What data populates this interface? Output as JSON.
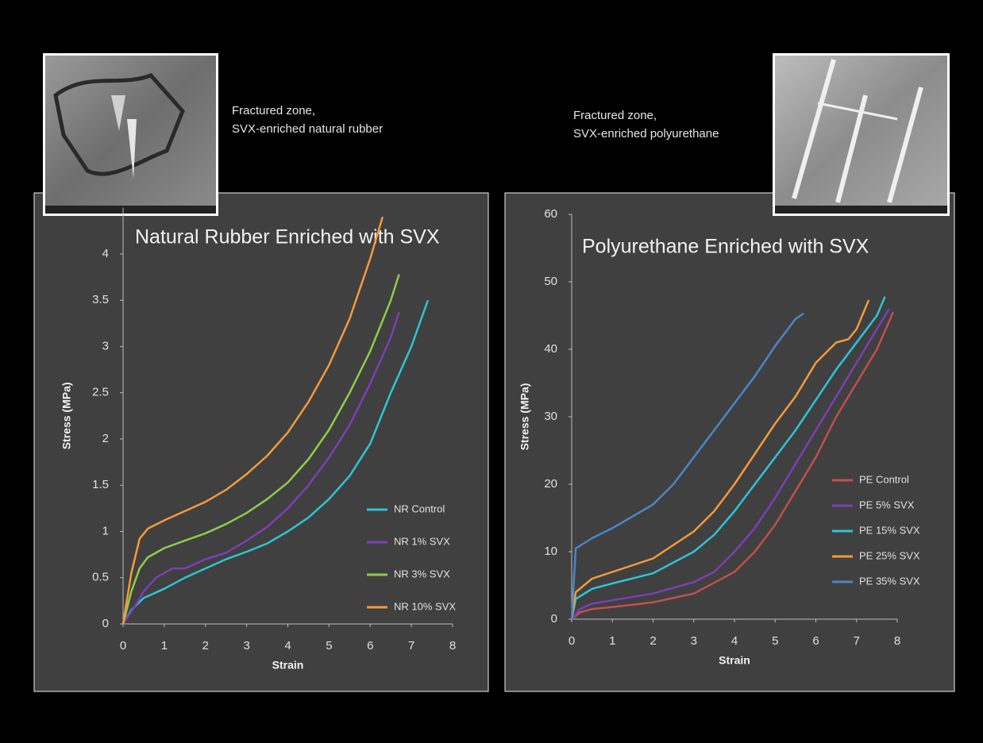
{
  "captions": [
    {
      "line1": "Fractured zone,",
      "line2": "SVX-enriched natural rubber"
    },
    {
      "line1": "Fractured zone,",
      "line2": "SVX-enriched polyurethane"
    }
  ],
  "chart_data": [
    {
      "type": "line",
      "title": "Natural Rubber Enriched with SVX",
      "x_label": "Strain",
      "y_label": "Stress (MPa)",
      "xlim": [
        0,
        8
      ],
      "xticks": [
        0,
        1,
        2,
        3,
        4,
        5,
        6,
        7,
        8
      ],
      "ylim": [
        0,
        4.5
      ],
      "yticks": [
        0,
        0.5,
        1,
        1.5,
        2,
        2.5,
        3,
        3.5,
        4
      ],
      "legend": "right",
      "series": [
        {
          "name": "NR Control",
          "color": "#2ec4d6",
          "x": [
            0,
            0.2,
            0.5,
            1,
            1.5,
            2,
            2.5,
            3,
            3.5,
            4,
            4.5,
            5,
            5.5,
            6,
            6.5,
            7,
            7.2,
            7.4
          ],
          "values": [
            0,
            0.15,
            0.28,
            0.38,
            0.5,
            0.6,
            0.7,
            0.78,
            0.87,
            1.0,
            1.15,
            1.35,
            1.6,
            1.95,
            2.5,
            3.0,
            3.25,
            3.5
          ]
        },
        {
          "name": "NR 1% SVX",
          "color": "#7b3fb5",
          "x": [
            0,
            0.3,
            0.5,
            0.8,
            1.2,
            1.5,
            2,
            2.5,
            3,
            3.5,
            4,
            4.5,
            5,
            5.5,
            6,
            6.5,
            6.7
          ],
          "values": [
            0,
            0.2,
            0.35,
            0.5,
            0.6,
            0.6,
            0.7,
            0.77,
            0.9,
            1.05,
            1.25,
            1.5,
            1.8,
            2.15,
            2.6,
            3.1,
            3.37
          ]
        },
        {
          "name": "NR 3% SVX",
          "color": "#8fcc4a",
          "x": [
            0,
            0.2,
            0.4,
            0.6,
            1,
            1.5,
            2,
            2.5,
            3,
            3.5,
            4,
            4.5,
            5,
            5.5,
            6,
            6.5,
            6.7
          ],
          "values": [
            0,
            0.35,
            0.6,
            0.72,
            0.82,
            0.9,
            0.98,
            1.08,
            1.2,
            1.35,
            1.53,
            1.78,
            2.1,
            2.5,
            2.95,
            3.5,
            3.78
          ]
        },
        {
          "name": "NR 10% SVX",
          "color": "#f39a3a",
          "x": [
            0,
            0.2,
            0.4,
            0.6,
            1,
            1.5,
            2,
            2.5,
            3,
            3.5,
            4,
            4.5,
            5,
            5.5,
            6,
            6.3
          ],
          "values": [
            0,
            0.55,
            0.92,
            1.03,
            1.12,
            1.22,
            1.32,
            1.45,
            1.62,
            1.82,
            2.07,
            2.4,
            2.8,
            3.3,
            3.95,
            4.4
          ]
        }
      ]
    },
    {
      "type": "line",
      "title": "Polyurethane Enriched with SVX",
      "x_label": "Strain",
      "y_label": "Stress (MPa)",
      "xlim": [
        0,
        8
      ],
      "xticks": [
        0,
        1,
        2,
        3,
        4,
        5,
        6,
        7,
        8
      ],
      "ylim": [
        0,
        60
      ],
      "yticks": [
        0,
        10,
        20,
        30,
        40,
        50,
        60
      ],
      "legend": "right",
      "series": [
        {
          "name": "PE Control",
          "color": "#c0504d",
          "x": [
            0,
            0.2,
            0.5,
            1,
            2,
            3,
            4,
            4.5,
            5,
            5.5,
            6,
            6.5,
            7,
            7.5,
            7.9
          ],
          "values": [
            0,
            1,
            1.5,
            1.8,
            2.5,
            3.8,
            7,
            10,
            14,
            19,
            24,
            30,
            35,
            40,
            45.5
          ]
        },
        {
          "name": "PE 5% SVX",
          "color": "#7b3fb5",
          "x": [
            0,
            0.2,
            0.5,
            1,
            2,
            3,
            3.5,
            4,
            4.5,
            5,
            5.5,
            6,
            6.5,
            7,
            7.5,
            7.8
          ],
          "values": [
            0,
            1.5,
            2.3,
            2.8,
            3.8,
            5.5,
            7,
            10,
            13.5,
            18,
            23,
            28,
            33,
            38,
            43,
            46
          ]
        },
        {
          "name": "PE 15% SVX",
          "color": "#2ec4d6",
          "x": [
            0,
            0.1,
            0.5,
            1,
            2,
            3,
            3.5,
            4,
            4.5,
            5,
            5.5,
            6,
            6.5,
            7,
            7.5,
            7.7
          ],
          "values": [
            0,
            3,
            4.5,
            5.3,
            6.8,
            10,
            12.5,
            16,
            20,
            24,
            28,
            32.5,
            37,
            41,
            45,
            47.8
          ]
        },
        {
          "name": "PE 25% SVX",
          "color": "#f39a3a",
          "x": [
            0,
            0.1,
            0.5,
            1,
            2,
            3,
            3.5,
            4,
            4.5,
            5,
            5.5,
            6,
            6.5,
            6.8,
            7,
            7.3
          ],
          "values": [
            0,
            4,
            6,
            7,
            9,
            13,
            16,
            20,
            24.5,
            29,
            33,
            38,
            41,
            41.5,
            43,
            47.3
          ]
        },
        {
          "name": "PE 35% SVX",
          "color": "#4a86c8",
          "x": [
            0,
            0.1,
            0.5,
            1,
            2,
            2.5,
            3,
            3.5,
            4,
            4.5,
            5,
            5.5,
            5.7
          ],
          "values": [
            0,
            10.5,
            12,
            13.5,
            17,
            20,
            24,
            28,
            32,
            36,
            40.5,
            44.5,
            45.3
          ]
        }
      ]
    }
  ]
}
